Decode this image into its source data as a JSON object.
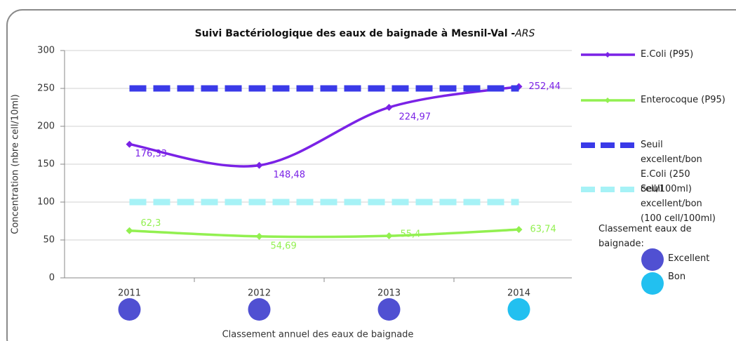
{
  "chart_data": {
    "type": "line",
    "title": "Suivi Bactériologique des eaux de baignade à Mesnil-Val -",
    "title_italic": "ARS",
    "y_label": "Concentration (nbre cell/10ml)",
    "x_label": "Classement annuel des eaux de baignade",
    "categories": [
      "2011",
      "2012",
      "2013",
      "2014"
    ],
    "ylim": [
      0,
      300
    ],
    "yticks": [
      0,
      50,
      100,
      150,
      200,
      250,
      300
    ],
    "grid": true,
    "series": [
      {
        "name": "E.Coli (P95)",
        "color": "#7a22e6",
        "style": "solid",
        "values": [
          176.33,
          148.48,
          224.97,
          252.44
        ],
        "value_labels": [
          "176,33",
          "148,48",
          "224,97",
          "252,44"
        ]
      },
      {
        "name": "Enterocoque (P95)",
        "color": "#92f050",
        "style": "solid",
        "values": [
          62.3,
          54.69,
          55.4,
          63.74
        ],
        "value_labels": [
          "62,3",
          "54,69",
          "55,4",
          "63,74"
        ]
      },
      {
        "name": "Seuil excellent/bon E.Coli (250 cell/100ml)",
        "color": "#3a3ae8",
        "style": "dashed",
        "values": [
          250,
          250,
          250,
          250
        ]
      },
      {
        "name": "Seuil excellent/bon (100 cell/100ml)",
        "color": "#a6f2f6",
        "style": "dashed",
        "values": [
          100,
          100,
          100,
          100
        ]
      }
    ],
    "classement_title": "Classement eaux  de baignade:",
    "classes": [
      {
        "name": "Excellent",
        "color": "#5050d2"
      },
      {
        "name": "Bon",
        "color": "#22c0f0"
      }
    ],
    "classement": [
      "Excellent",
      "Excellent",
      "Excellent",
      "Bon"
    ]
  }
}
